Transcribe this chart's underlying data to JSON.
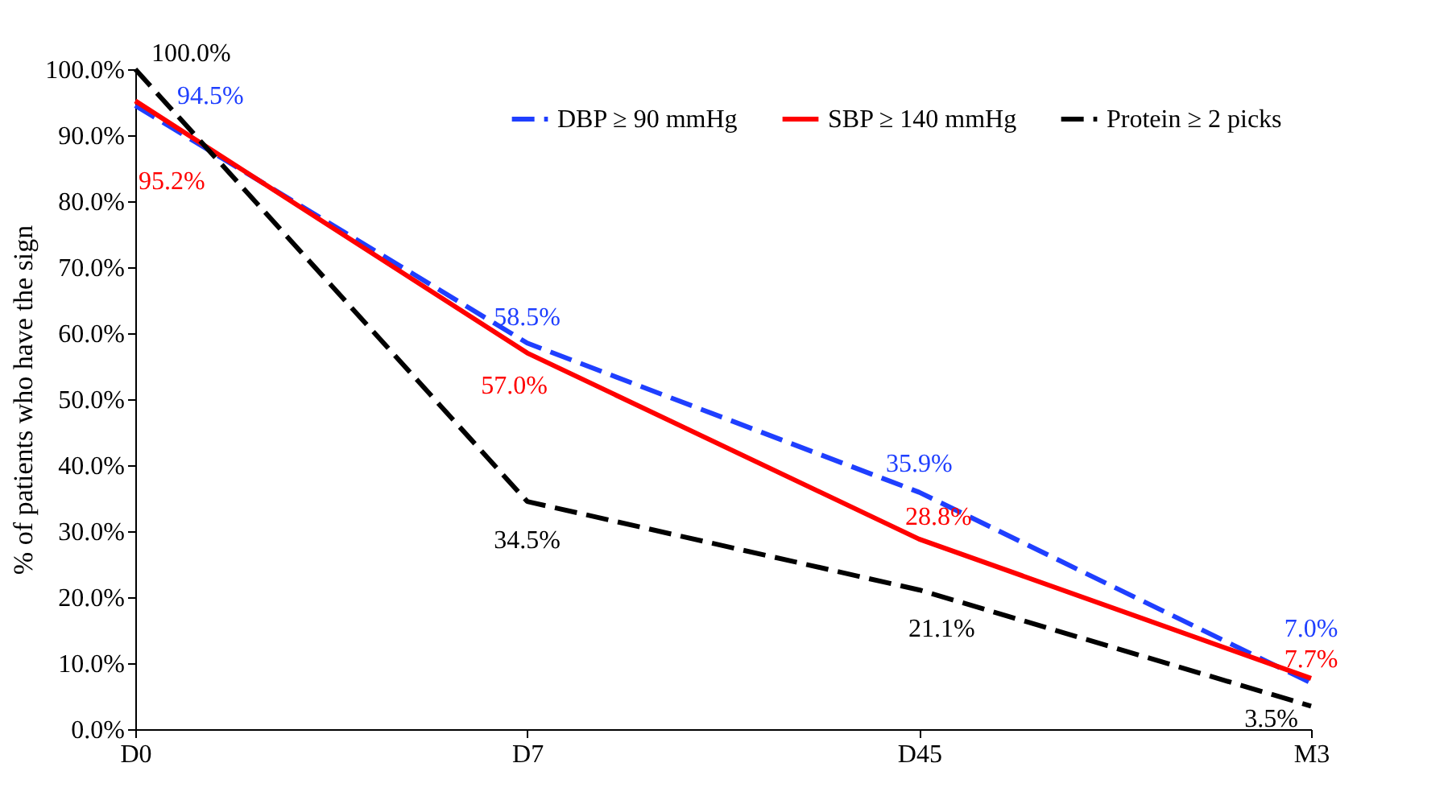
{
  "chart_data": {
    "type": "line",
    "ylabel": "% of patients who have the sign",
    "categories": [
      "D0",
      "D7",
      "D45",
      "M3"
    ],
    "series": [
      {
        "name": "DBP ≥ 90 mmHg",
        "color": "#1f3fff",
        "line_style": "dashed",
        "values": [
          94.5,
          58.5,
          35.9,
          7.0
        ]
      },
      {
        "name": "SBP ≥ 140 mmHg",
        "color": "#ff0000",
        "line_style": "solid",
        "values": [
          95.2,
          57.0,
          28.8,
          7.7
        ]
      },
      {
        "name": "Protein ≥ 2 picks",
        "color": "#000000",
        "line_style": "dashed",
        "values": [
          100.0,
          34.5,
          21.1,
          3.5
        ]
      }
    ],
    "ylim": [
      0,
      100
    ],
    "yticks": [
      {
        "value": 0,
        "label": "0.0%"
      },
      {
        "value": 10,
        "label": "10.0%"
      },
      {
        "value": 20,
        "label": "20.0%"
      },
      {
        "value": 30,
        "label": "30.0%"
      },
      {
        "value": 40,
        "label": "40.0%"
      },
      {
        "value": 50,
        "label": "50.0%"
      },
      {
        "value": 60,
        "label": "60.0%"
      },
      {
        "value": 70,
        "label": "70.0%"
      },
      {
        "value": 80,
        "label": "80.0%"
      },
      {
        "value": 90,
        "label": "90.0%"
      },
      {
        "value": 100,
        "label": "100.0%"
      }
    ],
    "value_labels": [
      [
        "94.5%",
        "58.5%",
        "35.9%",
        "7.0%"
      ],
      [
        "95.2%",
        "57.0%",
        "28.8%",
        "7.7%"
      ],
      [
        "100.0%",
        "34.5%",
        "21.1%",
        "3.5%"
      ]
    ],
    "legend": "top right",
    "grid": false,
    "marker": "none"
  }
}
